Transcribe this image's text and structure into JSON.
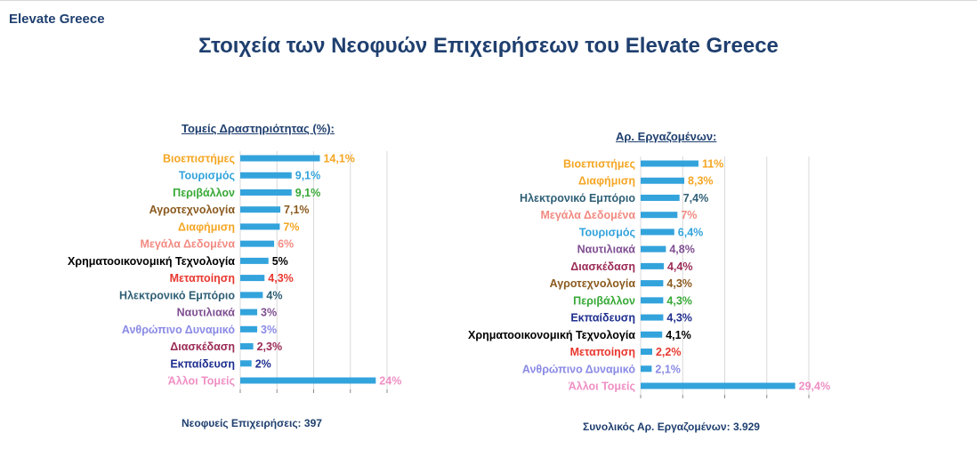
{
  "header": {
    "brand": "Elevate Greece",
    "title": "Στοιχεία των Νεοφυών Επιχειρήσεων του Elevate Greece"
  },
  "colors": {
    "bar": "#33a3dc",
    "title": "#1f3f6f",
    "grid": "#d9d9d9"
  },
  "chart_data": [
    {
      "type": "bar",
      "orientation": "horizontal",
      "title": "Τομείς Δραστηριότητας (%):",
      "footer": "Νεοφυείς Επιχειρήσεις: 397",
      "grid": true,
      "xlim": [
        0,
        26
      ],
      "categories": [
        "Βιοεπιστήμες",
        "Τουρισμός",
        "Περιβάλλον",
        "Αγροτεχνολογία",
        "Διαφήμιση",
        "Μεγάλα Δεδομένα",
        "Χρηματοοικονομική Τεχνολογία",
        "Μεταποίηση",
        "Ηλεκτρονικό Εμπόριο",
        "Ναυτιλιακά",
        "Ανθρώπινο Δυναμικό",
        "Διασκέδαση",
        "Εκπαίδευση",
        "Άλλοι Τομείς"
      ],
      "values": [
        14.1,
        9.1,
        9.1,
        7.1,
        7,
        6,
        5,
        4.3,
        4,
        3,
        3,
        2.3,
        2,
        24
      ],
      "value_labels": [
        "14,1%",
        "9,1%",
        "9,1%",
        "7,1%",
        "7%",
        "6%",
        "5%",
        "4,3%",
        "4%",
        "3%",
        "3%",
        "2,3%",
        "2%",
        "24%"
      ],
      "label_colors": [
        "#f5a623",
        "#33a3dc",
        "#37a936",
        "#8b5a1f",
        "#f5a623",
        "#f28b82",
        "#000000",
        "#e8382f",
        "#2f5f76",
        "#7f4f92",
        "#8a8ae6",
        "#9b2a55",
        "#1f2f8f",
        "#f08fc4"
      ]
    },
    {
      "type": "bar",
      "orientation": "horizontal",
      "title": "Αρ. Εργαζομένων:",
      "footer": "Συνολικός Αρ. Εργαζομένων: 3.929",
      "grid": true,
      "xlim": [
        0,
        32
      ],
      "categories": [
        "Βιοεπιστήμες",
        "Διαφήμιση",
        "Ηλεκτρονικό Εμπόριο",
        "Μεγάλα Δεδομένα",
        "Τουρισμός",
        "Ναυτιλιακά",
        "Διασκέδαση",
        "Αγροτεχνολογία",
        "Περιβάλλον",
        "Εκπαίδευση",
        "Χρηματοοικονομική Τεχνολογία",
        "Μεταποίηση",
        "Ανθρώπινο Δυναμικό",
        "Άλλοι Τομείς"
      ],
      "values": [
        11,
        8.3,
        7.4,
        7,
        6.4,
        4.8,
        4.4,
        4.3,
        4.3,
        4.3,
        4.1,
        2.2,
        2.1,
        29.4
      ],
      "value_labels": [
        "11%",
        "8,3%",
        "7,4%",
        "7%",
        "6,4%",
        "4,8%",
        "4,4%",
        "4,3%",
        "4,3%",
        "4,3%",
        "4,1%",
        "2,2%",
        "2,1%",
        "29,4%"
      ],
      "label_colors": [
        "#f5a623",
        "#f5a623",
        "#2f5f76",
        "#f28b82",
        "#33a3dc",
        "#7f4f92",
        "#9b2a55",
        "#8b5a1f",
        "#37a936",
        "#1f2f8f",
        "#000000",
        "#e8382f",
        "#8a8ae6",
        "#f08fc4"
      ]
    }
  ]
}
